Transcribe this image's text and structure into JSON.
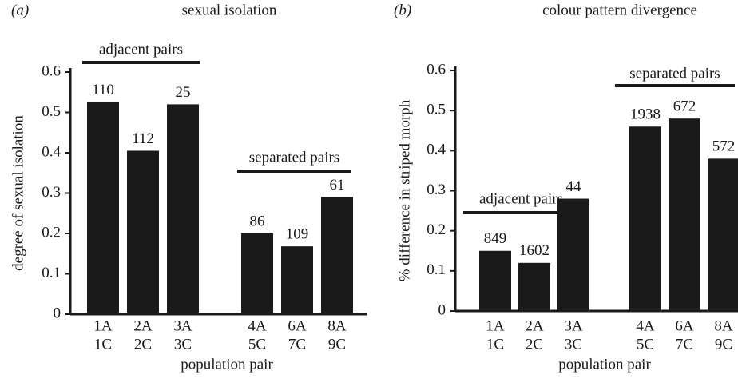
{
  "chart_data": [
    {
      "type": "bar",
      "panel": "(a)",
      "title": "sexual isolation",
      "ylabel": "degree of sexual isolation",
      "xlabel": "population pair",
      "categories": [
        [
          "1A",
          "1C"
        ],
        [
          "2A",
          "2C"
        ],
        [
          "3A",
          "3C"
        ],
        [
          "4A",
          "5C"
        ],
        [
          "6A",
          "7C"
        ],
        [
          "8A",
          "9C"
        ]
      ],
      "values": [
        0.525,
        0.405,
        0.52,
        0.2,
        0.168,
        0.29
      ],
      "bar_labels": [
        "110",
        "112",
        "25",
        "86",
        "109",
        "61"
      ],
      "annotations": [
        "adjacent pairs",
        "separated pairs"
      ],
      "color": "#1a1a1a",
      "ylim": [
        0,
        0.6
      ],
      "yticks": [
        0,
        0.1,
        0.2,
        0.3,
        0.4,
        0.5,
        0.6
      ]
    },
    {
      "type": "bar",
      "panel": "(b)",
      "title": "colour pattern divergence",
      "ylabel": "% difference in striped morph",
      "xlabel": "population pair",
      "categories": [
        [
          "1A",
          "1C"
        ],
        [
          "2A",
          "2C"
        ],
        [
          "3A",
          "3C"
        ],
        [
          "4A",
          "5C"
        ],
        [
          "6A",
          "7C"
        ],
        [
          "8A",
          "9C"
        ]
      ],
      "values": [
        0.15,
        0.12,
        0.28,
        0.46,
        0.48,
        0.38
      ],
      "bar_labels": [
        "849",
        "1602",
        "44",
        "1938",
        "672",
        "572"
      ],
      "annotations": [
        "adjacent pairs",
        "separated pairs"
      ],
      "color": "#1a1a1a",
      "ylim": [
        0,
        0.6
      ],
      "yticks": [
        0,
        0.1,
        0.2,
        0.3,
        0.4,
        0.5,
        0.6
      ]
    }
  ]
}
